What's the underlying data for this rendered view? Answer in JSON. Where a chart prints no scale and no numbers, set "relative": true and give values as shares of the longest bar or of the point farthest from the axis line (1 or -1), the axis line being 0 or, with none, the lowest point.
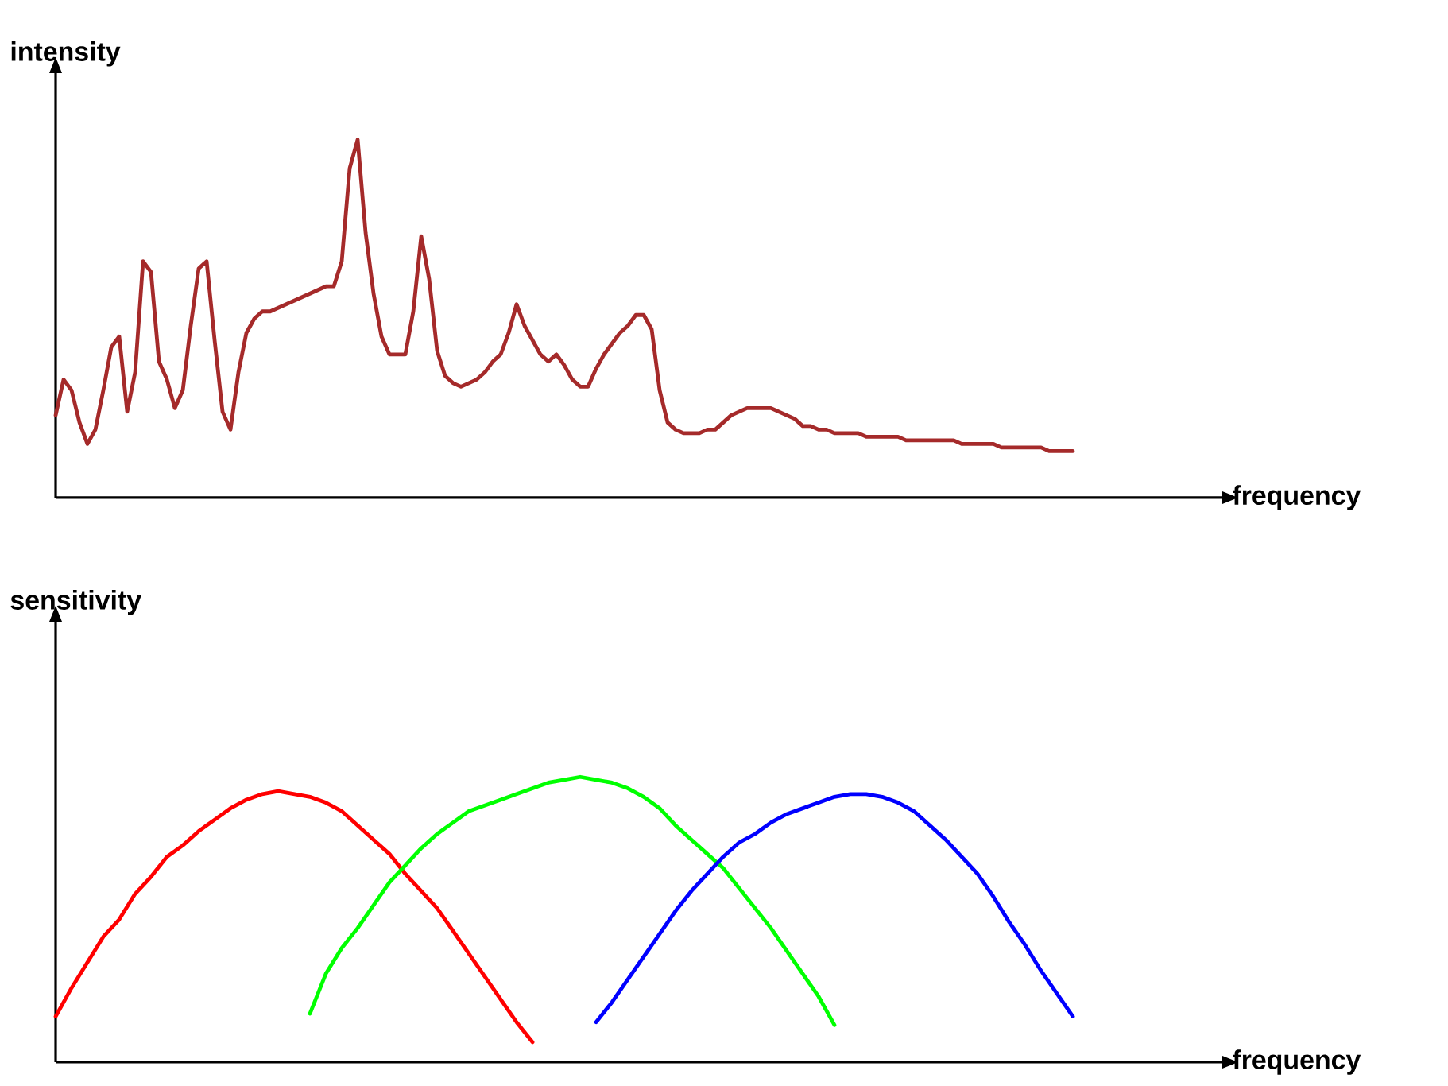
{
  "chart_data": [
    {
      "type": "line",
      "relative": true,
      "xlabel": "frequency",
      "ylabel": "intensity",
      "categories": [
        null,
        null,
        null,
        null,
        null,
        null,
        null,
        null,
        null,
        null,
        null,
        null,
        null,
        null,
        null,
        null,
        null,
        null,
        null,
        null,
        null,
        null,
        null,
        null,
        null,
        null,
        null,
        null,
        null,
        null,
        null,
        null,
        null,
        null,
        null,
        null,
        null,
        null,
        null,
        null,
        null,
        null,
        null,
        null,
        null,
        null,
        null,
        null,
        null,
        null,
        null,
        null,
        null,
        null,
        null,
        null,
        null,
        null,
        null,
        null,
        null,
        null,
        null,
        null,
        null,
        null,
        null,
        null,
        null,
        null,
        null,
        null,
        null,
        null,
        null,
        null,
        null,
        null,
        null,
        null,
        null,
        null,
        null,
        null,
        null,
        null,
        null,
        null,
        null,
        null,
        null,
        null,
        null,
        null,
        null,
        null,
        null,
        null,
        null,
        null,
        null,
        null,
        null,
        null,
        null,
        null,
        null,
        null,
        null,
        null,
        null,
        null,
        null,
        null,
        null,
        null,
        null,
        null,
        null,
        null,
        null,
        null,
        null,
        null,
        null,
        null,
        null,
        null,
        null
      ],
      "series": [
        {
          "color": "#a52a2a",
          "values": [
            0.23,
            0.33,
            0.3,
            0.21,
            0.15,
            0.19,
            0.3,
            0.42,
            0.45,
            0.24,
            0.35,
            0.66,
            0.63,
            0.38,
            0.33,
            0.25,
            0.3,
            0.48,
            0.64,
            0.66,
            0.44,
            0.24,
            0.19,
            0.35,
            0.46,
            0.5,
            0.52,
            0.52,
            0.53,
            0.54,
            0.55,
            0.56,
            0.57,
            0.58,
            0.59,
            0.59,
            0.66,
            0.92,
            1,
            0.74,
            0.57,
            0.45,
            0.4,
            0.4,
            0.4,
            0.52,
            0.73,
            0.61,
            0.41,
            0.34,
            0.32,
            0.31,
            0.32,
            0.33,
            0.35,
            0.38,
            0.4,
            0.46,
            0.54,
            0.48,
            0.44,
            0.4,
            0.38,
            0.4,
            0.37,
            0.33,
            0.31,
            0.31,
            0.36,
            0.4,
            0.43,
            0.46,
            0.48,
            0.51,
            0.51,
            0.47,
            0.3,
            0.21,
            0.19,
            0.18,
            0.18,
            0.18,
            0.19,
            0.19,
            0.21,
            0.23,
            0.24,
            0.25,
            0.25,
            0.25,
            0.25,
            0.24,
            0.23,
            0.22,
            0.2,
            0.2,
            0.19,
            0.19,
            0.18,
            0.18,
            0.18,
            0.18,
            0.17,
            0.17,
            0.17,
            0.17,
            0.17,
            0.16,
            0.16,
            0.16,
            0.16,
            0.16,
            0.16,
            0.16,
            0.15,
            0.15,
            0.15,
            0.15,
            0.15,
            0.14,
            0.14,
            0.14,
            0.14,
            0.14,
            0.14,
            0.13,
            0.13,
            0.13,
            0.13
          ]
        }
      ]
    },
    {
      "type": "line",
      "relative": true,
      "xlabel": "frequency",
      "ylabel": "sensitivity",
      "categories": [
        null,
        null,
        null,
        null,
        null,
        null,
        null,
        null,
        null,
        null,
        null,
        null,
        null,
        null,
        null,
        null,
        null,
        null,
        null,
        null,
        null,
        null,
        null,
        null,
        null,
        null,
        null,
        null,
        null,
        null,
        null,
        null,
        null,
        null,
        null,
        null,
        null,
        null,
        null,
        null,
        null,
        null,
        null,
        null,
        null,
        null,
        null,
        null,
        null,
        null,
        null,
        null,
        null,
        null,
        null,
        null,
        null,
        null,
        null,
        null,
        null,
        null,
        null,
        null,
        null
      ],
      "series": [
        {
          "color": "#ff0000",
          "values": [
            0.16,
            0.26,
            0.35,
            0.44,
            0.5,
            0.59,
            0.65,
            0.72,
            0.76,
            0.81,
            0.85,
            0.89,
            0.92,
            0.94,
            0.95,
            0.94,
            0.93,
            0.91,
            0.88,
            0.83,
            0.78,
            0.73,
            0.66,
            0.6,
            0.54,
            0.46,
            0.38,
            0.3,
            0.22,
            0.14,
            0.07,
            null,
            null,
            null,
            null,
            null,
            null,
            null,
            null,
            null,
            null,
            null,
            null,
            null,
            null,
            null,
            null,
            null,
            null,
            null,
            null,
            null,
            null,
            null,
            null,
            null,
            null,
            null,
            null,
            null,
            null,
            null,
            null,
            null,
            null
          ]
        },
        {
          "color": "#00ff00",
          "values": [
            null,
            null,
            null,
            null,
            null,
            null,
            null,
            null,
            null,
            null,
            null,
            null,
            null,
            null,
            null,
            null,
            0.17,
            0.31,
            0.4,
            0.47,
            0.55,
            0.63,
            0.69,
            0.75,
            0.8,
            0.84,
            0.88,
            0.9,
            0.92,
            0.94,
            0.96,
            0.98,
            0.99,
            1,
            0.99,
            0.98,
            0.96,
            0.93,
            0.89,
            0.83,
            0.78,
            0.73,
            0.68,
            0.61,
            0.54,
            0.47,
            0.39,
            0.31,
            0.23,
            0.13,
            null,
            null,
            null,
            null,
            null,
            null,
            null,
            null,
            null,
            null,
            null,
            null,
            null,
            null,
            null
          ]
        },
        {
          "color": "#0000ff",
          "values": [
            null,
            null,
            null,
            null,
            null,
            null,
            null,
            null,
            null,
            null,
            null,
            null,
            null,
            null,
            null,
            null,
            null,
            null,
            null,
            null,
            null,
            null,
            null,
            null,
            null,
            null,
            null,
            null,
            null,
            null,
            null,
            null,
            null,
            null,
            0.14,
            0.21,
            0.29,
            0.37,
            0.45,
            0.53,
            0.6,
            0.66,
            0.72,
            0.77,
            0.8,
            0.84,
            0.87,
            0.89,
            0.91,
            0.93,
            0.94,
            0.94,
            0.93,
            0.91,
            0.88,
            0.83,
            0.78,
            0.72,
            0.66,
            0.58,
            0.49,
            0.41,
            0.32,
            0.24,
            0.16
          ]
        }
      ]
    }
  ]
}
